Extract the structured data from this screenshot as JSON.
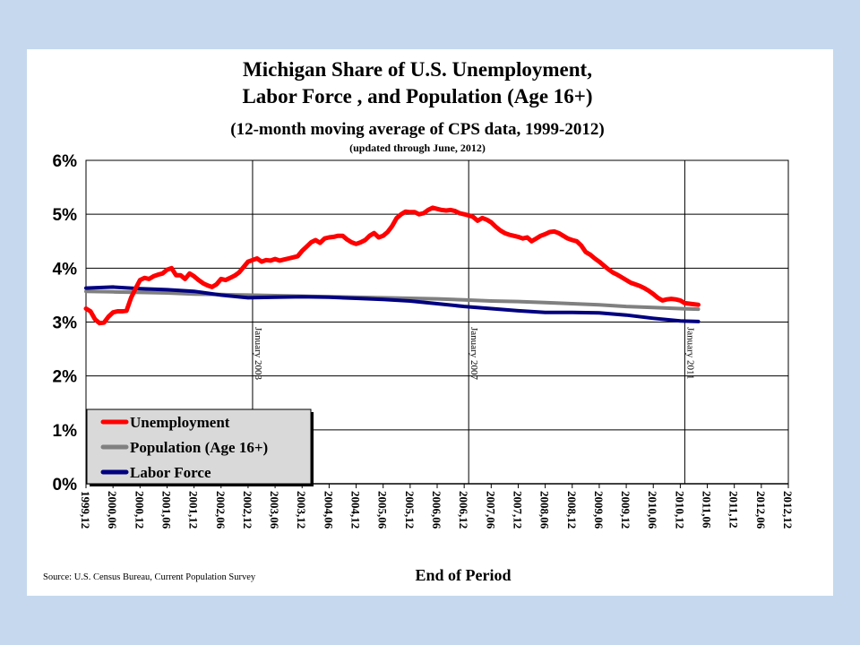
{
  "chart_data": {
    "type": "line",
    "title": "Michigan Share of U.S. Unemployment,",
    "title_line2": "Labor Force , and Population (Age 16+)",
    "subtitle": "(12-month moving average of CPS data, 1999-2012)",
    "subtitle2": "(updated through June, 2012)",
    "xlabel": "End of Period",
    "ylabel": "",
    "source": "Source: U.S. Census Bureau, Current Population Survey",
    "ylim": [
      0,
      6
    ],
    "y_ticks": [
      "0%",
      "1%",
      "2%",
      "3%",
      "4%",
      "5%",
      "6%"
    ],
    "x_ticks": [
      "1999,12",
      "2000,06",
      "2000,12",
      "2001,06",
      "2001,12",
      "2002,06",
      "2002,12",
      "2003,06",
      "2003,12",
      "2004,06",
      "2004,12",
      "2005,06",
      "2005,12",
      "2006,06",
      "2006,12",
      "2007,06",
      "2007,12",
      "2008,06",
      "2008,12",
      "2009,06",
      "2009,12",
      "2010,06",
      "2010,12",
      "2011,06",
      "2011,12",
      "2012,06",
      "2012,12"
    ],
    "x_unit": "months",
    "grid": true,
    "legend_position": "bottom-left",
    "markers": [
      {
        "label": "January 2003",
        "x": "2003-01"
      },
      {
        "label": "January 2007",
        "x": "2007-01"
      },
      {
        "label": "January 2011",
        "x": "2011-01"
      }
    ],
    "series": [
      {
        "name": "Unemployment",
        "color": "#ff0000",
        "points": [
          [
            "1999-12",
            3.25
          ],
          [
            "2000-01",
            3.2
          ],
          [
            "2000-02",
            3.05
          ],
          [
            "2000-03",
            2.98
          ],
          [
            "2000-04",
            2.99
          ],
          [
            "2000-05",
            3.1
          ],
          [
            "2000-06",
            3.18
          ],
          [
            "2000-07",
            3.2
          ],
          [
            "2000-08",
            3.2
          ],
          [
            "2000-09",
            3.21
          ],
          [
            "2000-10",
            3.45
          ],
          [
            "2000-11",
            3.62
          ],
          [
            "2000-12",
            3.78
          ],
          [
            "2001-01",
            3.82
          ],
          [
            "2001-02",
            3.8
          ],
          [
            "2001-03",
            3.85
          ],
          [
            "2001-04",
            3.88
          ],
          [
            "2001-05",
            3.9
          ],
          [
            "2001-06",
            3.97
          ],
          [
            "2001-07",
            4.0
          ],
          [
            "2001-08",
            3.87
          ],
          [
            "2001-09",
            3.87
          ],
          [
            "2001-10",
            3.8
          ],
          [
            "2001-11",
            3.9
          ],
          [
            "2001-12",
            3.85
          ],
          [
            "2002-01",
            3.78
          ],
          [
            "2002-02",
            3.72
          ],
          [
            "2002-03",
            3.68
          ],
          [
            "2002-04",
            3.65
          ],
          [
            "2002-05",
            3.7
          ],
          [
            "2002-06",
            3.8
          ],
          [
            "2002-07",
            3.78
          ],
          [
            "2002-08",
            3.82
          ],
          [
            "2002-09",
            3.86
          ],
          [
            "2002-10",
            3.92
          ],
          [
            "2002-11",
            4.02
          ],
          [
            "2002-12",
            4.12
          ],
          [
            "2003-01",
            4.15
          ],
          [
            "2003-02",
            4.18
          ],
          [
            "2003-03",
            4.12
          ],
          [
            "2003-04",
            4.15
          ],
          [
            "2003-05",
            4.14
          ],
          [
            "2003-06",
            4.17
          ],
          [
            "2003-07",
            4.14
          ],
          [
            "2003-08",
            4.16
          ],
          [
            "2003-09",
            4.18
          ],
          [
            "2003-10",
            4.2
          ],
          [
            "2003-11",
            4.22
          ],
          [
            "2003-12",
            4.32
          ],
          [
            "2004-01",
            4.4
          ],
          [
            "2004-02",
            4.48
          ],
          [
            "2004-03",
            4.52
          ],
          [
            "2004-04",
            4.47
          ],
          [
            "2004-05",
            4.55
          ],
          [
            "2004-06",
            4.57
          ],
          [
            "2004-07",
            4.58
          ],
          [
            "2004-08",
            4.6
          ],
          [
            "2004-09",
            4.6
          ],
          [
            "2004-10",
            4.53
          ],
          [
            "2004-11",
            4.48
          ],
          [
            "2004-12",
            4.45
          ],
          [
            "2005-01",
            4.48
          ],
          [
            "2005-02",
            4.52
          ],
          [
            "2005-03",
            4.6
          ],
          [
            "2005-04",
            4.65
          ],
          [
            "2005-05",
            4.57
          ],
          [
            "2005-06",
            4.6
          ],
          [
            "2005-07",
            4.67
          ],
          [
            "2005-08",
            4.78
          ],
          [
            "2005-09",
            4.93
          ],
          [
            "2005-10",
            5.0
          ],
          [
            "2005-11",
            5.05
          ],
          [
            "2005-12",
            5.04
          ],
          [
            "2006-01",
            5.04
          ],
          [
            "2006-02",
            5.0
          ],
          [
            "2006-03",
            5.02
          ],
          [
            "2006-04",
            5.08
          ],
          [
            "2006-05",
            5.12
          ],
          [
            "2006-06",
            5.1
          ],
          [
            "2006-07",
            5.08
          ],
          [
            "2006-08",
            5.07
          ],
          [
            "2006-09",
            5.08
          ],
          [
            "2006-10",
            5.06
          ],
          [
            "2006-11",
            5.02
          ],
          [
            "2006-12",
            5.0
          ],
          [
            "2007-01",
            4.98
          ],
          [
            "2007-02",
            4.95
          ],
          [
            "2007-03",
            4.88
          ],
          [
            "2007-04",
            4.93
          ],
          [
            "2007-05",
            4.9
          ],
          [
            "2007-06",
            4.85
          ],
          [
            "2007-07",
            4.77
          ],
          [
            "2007-08",
            4.7
          ],
          [
            "2007-09",
            4.65
          ],
          [
            "2007-10",
            4.62
          ],
          [
            "2007-11",
            4.6
          ],
          [
            "2007-12",
            4.58
          ],
          [
            "2008-01",
            4.55
          ],
          [
            "2008-02",
            4.57
          ],
          [
            "2008-03",
            4.5
          ],
          [
            "2008-04",
            4.55
          ],
          [
            "2008-05",
            4.6
          ],
          [
            "2008-06",
            4.63
          ],
          [
            "2008-07",
            4.67
          ],
          [
            "2008-08",
            4.68
          ],
          [
            "2008-09",
            4.65
          ],
          [
            "2008-10",
            4.6
          ],
          [
            "2008-11",
            4.55
          ],
          [
            "2008-12",
            4.52
          ],
          [
            "2009-01",
            4.5
          ],
          [
            "2009-02",
            4.42
          ],
          [
            "2009-03",
            4.3
          ],
          [
            "2009-04",
            4.25
          ],
          [
            "2009-05",
            4.18
          ],
          [
            "2009-06",
            4.12
          ],
          [
            "2009-07",
            4.05
          ],
          [
            "2009-08",
            3.98
          ],
          [
            "2009-09",
            3.92
          ],
          [
            "2009-10",
            3.88
          ],
          [
            "2009-11",
            3.83
          ],
          [
            "2009-12",
            3.78
          ],
          [
            "2010-01",
            3.73
          ],
          [
            "2010-02",
            3.7
          ],
          [
            "2010-03",
            3.67
          ],
          [
            "2010-04",
            3.63
          ],
          [
            "2010-05",
            3.58
          ],
          [
            "2010-06",
            3.52
          ],
          [
            "2010-07",
            3.45
          ],
          [
            "2010-08",
            3.4
          ],
          [
            "2010-09",
            3.42
          ],
          [
            "2010-10",
            3.43
          ],
          [
            "2010-11",
            3.42
          ],
          [
            "2010-12",
            3.4
          ],
          [
            "2011-01",
            3.35
          ],
          [
            "2011-02",
            3.34
          ],
          [
            "2011-03",
            3.33
          ],
          [
            "2011-04",
            3.32
          ]
        ]
      },
      {
        "name": "Population (Age 16+)",
        "color": "#808080",
        "points": [
          [
            "1999-12",
            3.57
          ],
          [
            "2000-06",
            3.56
          ],
          [
            "2000-12",
            3.55
          ],
          [
            "2001-06",
            3.54
          ],
          [
            "2001-12",
            3.52
          ],
          [
            "2002-06",
            3.51
          ],
          [
            "2002-12",
            3.5
          ],
          [
            "2003-06",
            3.49
          ],
          [
            "2003-12",
            3.48
          ],
          [
            "2004-06",
            3.47
          ],
          [
            "2004-12",
            3.46
          ],
          [
            "2005-06",
            3.45
          ],
          [
            "2005-12",
            3.44
          ],
          [
            "2006-06",
            3.43
          ],
          [
            "2006-12",
            3.41
          ],
          [
            "2007-06",
            3.39
          ],
          [
            "2007-12",
            3.38
          ],
          [
            "2008-06",
            3.36
          ],
          [
            "2008-12",
            3.34
          ],
          [
            "2009-06",
            3.32
          ],
          [
            "2009-12",
            3.29
          ],
          [
            "2010-06",
            3.27
          ],
          [
            "2010-12",
            3.25
          ],
          [
            "2011-04",
            3.24
          ]
        ]
      },
      {
        "name": "Labor Force",
        "color": "#000080",
        "points": [
          [
            "1999-12",
            3.63
          ],
          [
            "2000-06",
            3.65
          ],
          [
            "2000-12",
            3.62
          ],
          [
            "2001-06",
            3.6
          ],
          [
            "2001-12",
            3.57
          ],
          [
            "2002-06",
            3.5
          ],
          [
            "2002-12",
            3.45
          ],
          [
            "2003-06",
            3.46
          ],
          [
            "2003-12",
            3.47
          ],
          [
            "2004-06",
            3.46
          ],
          [
            "2004-12",
            3.44
          ],
          [
            "2005-06",
            3.42
          ],
          [
            "2005-12",
            3.39
          ],
          [
            "2006-06",
            3.34
          ],
          [
            "2006-12",
            3.29
          ],
          [
            "2007-06",
            3.25
          ],
          [
            "2007-12",
            3.21
          ],
          [
            "2008-06",
            3.18
          ],
          [
            "2008-12",
            3.18
          ],
          [
            "2009-06",
            3.17
          ],
          [
            "2009-12",
            3.13
          ],
          [
            "2010-06",
            3.07
          ],
          [
            "2010-12",
            3.02
          ],
          [
            "2011-04",
            3.01
          ]
        ]
      }
    ]
  }
}
